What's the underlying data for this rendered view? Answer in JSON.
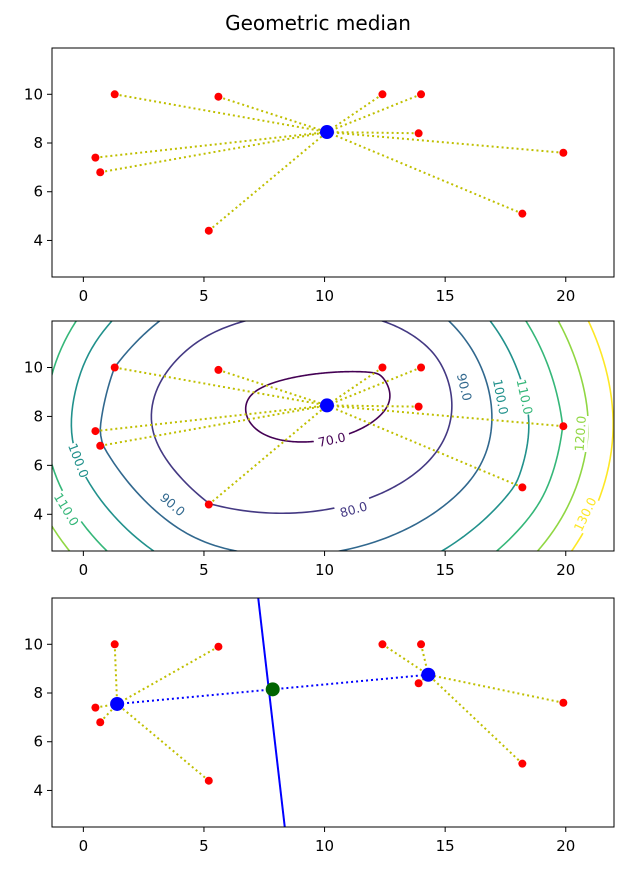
{
  "figure": {
    "title": "Geometric median"
  },
  "chart_data": [
    {
      "type": "scatter",
      "panel": "points-and-median",
      "title": "",
      "xlabel": "",
      "ylabel": "",
      "xlim": [
        -1.3,
        22.0
      ],
      "ylim": [
        2.5,
        11.9
      ],
      "xticks": [
        0,
        5,
        10,
        15,
        20
      ],
      "yticks": [
        4,
        6,
        8,
        10
      ],
      "grid": false,
      "points": [
        [
          1.3,
          10.0
        ],
        [
          5.6,
          9.9
        ],
        [
          12.4,
          10.0
        ],
        [
          14.0,
          10.0
        ],
        [
          0.5,
          7.4
        ],
        [
          0.7,
          6.8
        ],
        [
          13.9,
          8.4
        ],
        [
          19.9,
          7.6
        ],
        [
          18.2,
          5.1
        ],
        [
          5.2,
          4.4
        ]
      ],
      "median": [
        10.1,
        8.45
      ],
      "colors": {
        "points": "#ff0000",
        "median": "#0000ff",
        "lines": "#bfbf00"
      }
    },
    {
      "type": "contour",
      "panel": "distance-sum-contours",
      "title": "",
      "xlabel": "",
      "ylabel": "",
      "xlim": [
        -1.3,
        22.0
      ],
      "ylim": [
        2.5,
        11.9
      ],
      "xticks": [
        0,
        5,
        10,
        15,
        20
      ],
      "yticks": [
        4,
        6,
        8,
        10
      ],
      "grid": false,
      "contour_levels": [
        70,
        80,
        90,
        100,
        110,
        120,
        130
      ],
      "contour_labels": [
        "70.0",
        "80.0",
        "90.0",
        "100.0",
        "110.0",
        "120.0",
        "130.0"
      ],
      "colormap": "viridis",
      "points": [
        [
          1.3,
          10.0
        ],
        [
          5.6,
          9.9
        ],
        [
          12.4,
          10.0
        ],
        [
          14.0,
          10.0
        ],
        [
          0.5,
          7.4
        ],
        [
          0.7,
          6.8
        ],
        [
          13.9,
          8.4
        ],
        [
          19.9,
          7.6
        ],
        [
          18.2,
          5.1
        ],
        [
          5.2,
          4.4
        ]
      ],
      "median": [
        10.1,
        8.45
      ]
    },
    {
      "type": "scatter",
      "panel": "split-clusters",
      "title": "",
      "xlabel": "",
      "ylabel": "",
      "xlim": [
        -1.3,
        22.0
      ],
      "ylim": [
        2.5,
        11.9
      ],
      "xticks": [
        0,
        5,
        10,
        15,
        20
      ],
      "yticks": [
        4,
        6,
        8,
        10
      ],
      "grid": false,
      "points": [
        [
          1.3,
          10.0
        ],
        [
          5.6,
          9.9
        ],
        [
          12.4,
          10.0
        ],
        [
          14.0,
          10.0
        ],
        [
          0.5,
          7.4
        ],
        [
          0.7,
          6.8
        ],
        [
          13.9,
          8.4
        ],
        [
          19.9,
          7.6
        ],
        [
          18.2,
          5.1
        ],
        [
          5.2,
          4.4
        ]
      ],
      "cluster_a_median": [
        1.4,
        7.55
      ],
      "cluster_b_median": [
        14.3,
        8.75
      ],
      "cluster_a_members": [
        0,
        1,
        4,
        5,
        9
      ],
      "cluster_b_members": [
        2,
        3,
        6,
        7,
        8
      ],
      "midpoint": [
        7.85,
        8.15
      ],
      "bisector": [
        [
          7.25,
          11.9
        ],
        [
          8.35,
          2.5
        ]
      ],
      "colors": {
        "points": "#ff0000",
        "medians": "#0000ff",
        "midpoint": "#006400",
        "bisector": "#0000ff",
        "lines": "#bfbf00"
      }
    }
  ]
}
